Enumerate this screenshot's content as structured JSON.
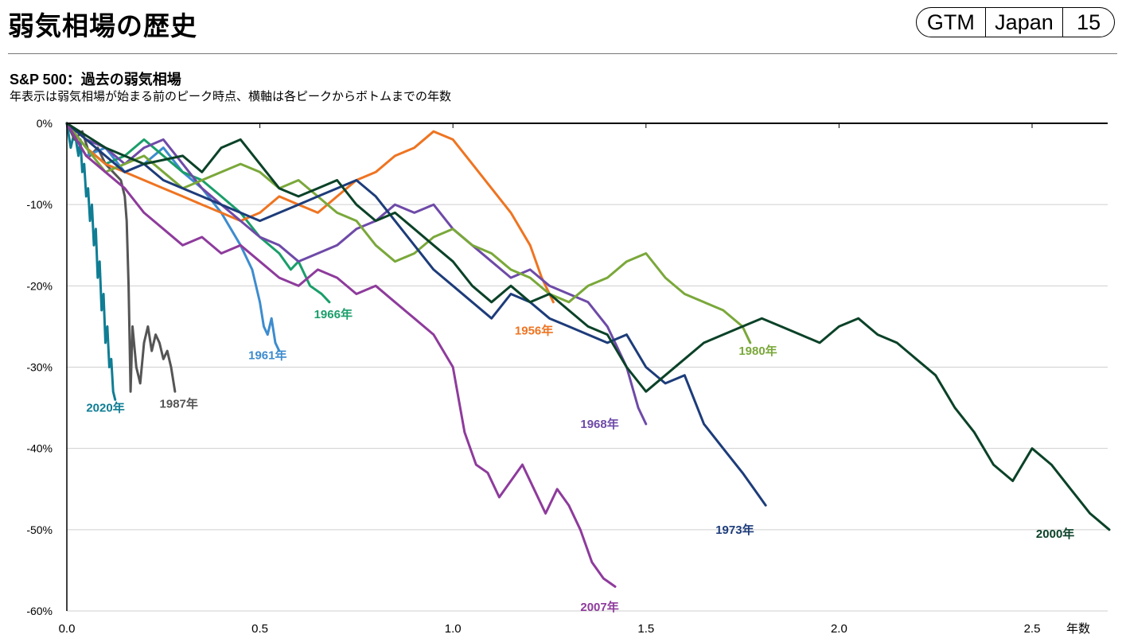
{
  "header": {
    "title": "弱気相場の歴史",
    "badge": [
      "GTM",
      "Japan",
      "15"
    ]
  },
  "subtitle": "S&P 500：過去の弱気相場",
  "caption": "年表示は弱気相場が始まる前のピーク時点、横軸は各ピークからボトムまでの年数",
  "chart_data": {
    "type": "line",
    "title": "S&P 500：過去の弱気相場",
    "xlabel": "年数",
    "ylabel": "",
    "xlim": [
      0,
      2.7
    ],
    "ylim": [
      -60,
      0
    ],
    "x_ticks": [
      "0.0",
      "0.5",
      "1.0",
      "1.5",
      "2.0",
      "2.5"
    ],
    "y_ticks": [
      "0%",
      "-10%",
      "-20%",
      "-30%",
      "-40%",
      "-50%",
      "-60%"
    ],
    "grid": true,
    "series": [
      {
        "name": "2020年",
        "color": "#0f7d94",
        "label_at": [
          0.1,
          -35.5
        ],
        "points": [
          [
            0,
            0
          ],
          [
            0.01,
            -3
          ],
          [
            0.02,
            -1
          ],
          [
            0.03,
            -4
          ],
          [
            0.035,
            -2
          ],
          [
            0.04,
            -6
          ],
          [
            0.045,
            -5
          ],
          [
            0.05,
            -9
          ],
          [
            0.055,
            -8
          ],
          [
            0.06,
            -12
          ],
          [
            0.065,
            -10
          ],
          [
            0.07,
            -15
          ],
          [
            0.075,
            -13
          ],
          [
            0.08,
            -19
          ],
          [
            0.085,
            -17
          ],
          [
            0.09,
            -23
          ],
          [
            0.095,
            -21
          ],
          [
            0.1,
            -27
          ],
          [
            0.105,
            -25
          ],
          [
            0.11,
            -30
          ],
          [
            0.115,
            -29
          ],
          [
            0.12,
            -33
          ],
          [
            0.125,
            -34
          ]
        ]
      },
      {
        "name": "1987年",
        "color": "#555555",
        "label_at": [
          0.29,
          -35
        ],
        "points": [
          [
            0,
            0
          ],
          [
            0.02,
            -2
          ],
          [
            0.04,
            -1
          ],
          [
            0.06,
            -4
          ],
          [
            0.08,
            -3
          ],
          [
            0.1,
            -5
          ],
          [
            0.12,
            -6
          ],
          [
            0.14,
            -7
          ],
          [
            0.15,
            -9
          ],
          [
            0.155,
            -12
          ],
          [
            0.16,
            -20
          ],
          [
            0.165,
            -33
          ],
          [
            0.17,
            -25
          ],
          [
            0.18,
            -30
          ],
          [
            0.19,
            -32
          ],
          [
            0.2,
            -27
          ],
          [
            0.21,
            -25
          ],
          [
            0.22,
            -28
          ],
          [
            0.23,
            -26
          ],
          [
            0.24,
            -27
          ],
          [
            0.25,
            -29
          ],
          [
            0.26,
            -28
          ],
          [
            0.27,
            -30
          ],
          [
            0.28,
            -33
          ]
        ]
      },
      {
        "name": "1961年",
        "color": "#3d8ccf",
        "label_at": [
          0.52,
          -29
        ],
        "points": [
          [
            0,
            0
          ],
          [
            0.05,
            -4
          ],
          [
            0.1,
            -3
          ],
          [
            0.15,
            -6
          ],
          [
            0.2,
            -5
          ],
          [
            0.25,
            -3
          ],
          [
            0.3,
            -6
          ],
          [
            0.35,
            -8
          ],
          [
            0.4,
            -11
          ],
          [
            0.45,
            -15
          ],
          [
            0.48,
            -18
          ],
          [
            0.5,
            -22
          ],
          [
            0.51,
            -25
          ],
          [
            0.52,
            -26
          ],
          [
            0.53,
            -24
          ],
          [
            0.54,
            -27
          ],
          [
            0.55,
            -28
          ]
        ]
      },
      {
        "name": "1966年",
        "color": "#1a9e6a",
        "label_at": [
          0.69,
          -24
        ],
        "points": [
          [
            0,
            0
          ],
          [
            0.05,
            -3
          ],
          [
            0.1,
            -5
          ],
          [
            0.15,
            -4
          ],
          [
            0.2,
            -2
          ],
          [
            0.25,
            -4
          ],
          [
            0.3,
            -6
          ],
          [
            0.35,
            -7
          ],
          [
            0.4,
            -9
          ],
          [
            0.45,
            -11
          ],
          [
            0.5,
            -14
          ],
          [
            0.55,
            -16
          ],
          [
            0.58,
            -18
          ],
          [
            0.6,
            -17
          ],
          [
            0.63,
            -20
          ],
          [
            0.66,
            -21
          ],
          [
            0.68,
            -22
          ]
        ]
      },
      {
        "name": "1956年",
        "color": "#ef7421",
        "label_at": [
          1.21,
          -26
        ],
        "points": [
          [
            0,
            0
          ],
          [
            0.05,
            -3
          ],
          [
            0.1,
            -5
          ],
          [
            0.15,
            -6
          ],
          [
            0.2,
            -7
          ],
          [
            0.25,
            -8
          ],
          [
            0.3,
            -9
          ],
          [
            0.35,
            -10
          ],
          [
            0.4,
            -11
          ],
          [
            0.45,
            -12
          ],
          [
            0.5,
            -11
          ],
          [
            0.55,
            -9
          ],
          [
            0.6,
            -10
          ],
          [
            0.65,
            -11
          ],
          [
            0.7,
            -9
          ],
          [
            0.75,
            -7
          ],
          [
            0.8,
            -6
          ],
          [
            0.85,
            -4
          ],
          [
            0.9,
            -3
          ],
          [
            0.95,
            -1
          ],
          [
            1.0,
            -2
          ],
          [
            1.05,
            -5
          ],
          [
            1.1,
            -8
          ],
          [
            1.15,
            -11
          ],
          [
            1.2,
            -15
          ],
          [
            1.23,
            -19
          ],
          [
            1.26,
            -22
          ]
        ]
      },
      {
        "name": "1968年",
        "color": "#6e4aa8",
        "label_at": [
          1.38,
          -37.5
        ],
        "points": [
          [
            0,
            0
          ],
          [
            0.05,
            -2
          ],
          [
            0.1,
            -3
          ],
          [
            0.15,
            -5
          ],
          [
            0.2,
            -3
          ],
          [
            0.25,
            -2
          ],
          [
            0.3,
            -5
          ],
          [
            0.35,
            -8
          ],
          [
            0.4,
            -10
          ],
          [
            0.45,
            -12
          ],
          [
            0.5,
            -14
          ],
          [
            0.55,
            -15
          ],
          [
            0.6,
            -17
          ],
          [
            0.65,
            -16
          ],
          [
            0.7,
            -15
          ],
          [
            0.75,
            -13
          ],
          [
            0.8,
            -12
          ],
          [
            0.85,
            -10
          ],
          [
            0.9,
            -11
          ],
          [
            0.95,
            -10
          ],
          [
            1.0,
            -13
          ],
          [
            1.05,
            -15
          ],
          [
            1.1,
            -17
          ],
          [
            1.15,
            -19
          ],
          [
            1.2,
            -18
          ],
          [
            1.25,
            -20
          ],
          [
            1.3,
            -21
          ],
          [
            1.35,
            -22
          ],
          [
            1.4,
            -25
          ],
          [
            1.45,
            -30
          ],
          [
            1.48,
            -35
          ],
          [
            1.5,
            -37
          ]
        ]
      },
      {
        "name": "1980年",
        "color": "#7aa83a",
        "label_at": [
          1.79,
          -28.5
        ],
        "points": [
          [
            0,
            0
          ],
          [
            0.05,
            -3
          ],
          [
            0.1,
            -6
          ],
          [
            0.15,
            -5
          ],
          [
            0.2,
            -4
          ],
          [
            0.25,
            -6
          ],
          [
            0.3,
            -8
          ],
          [
            0.35,
            -7
          ],
          [
            0.4,
            -6
          ],
          [
            0.45,
            -5
          ],
          [
            0.5,
            -6
          ],
          [
            0.55,
            -8
          ],
          [
            0.6,
            -7
          ],
          [
            0.65,
            -9
          ],
          [
            0.7,
            -11
          ],
          [
            0.75,
            -12
          ],
          [
            0.8,
            -15
          ],
          [
            0.85,
            -17
          ],
          [
            0.9,
            -16
          ],
          [
            0.95,
            -14
          ],
          [
            1.0,
            -13
          ],
          [
            1.05,
            -15
          ],
          [
            1.1,
            -16
          ],
          [
            1.15,
            -18
          ],
          [
            1.2,
            -19
          ],
          [
            1.25,
            -21
          ],
          [
            1.3,
            -22
          ],
          [
            1.35,
            -20
          ],
          [
            1.4,
            -19
          ],
          [
            1.45,
            -17
          ],
          [
            1.5,
            -16
          ],
          [
            1.55,
            -19
          ],
          [
            1.6,
            -21
          ],
          [
            1.65,
            -22
          ],
          [
            1.7,
            -23
          ],
          [
            1.75,
            -25
          ],
          [
            1.77,
            -27
          ]
        ]
      },
      {
        "name": "1973年",
        "color": "#1d3c7a",
        "label_at": [
          1.73,
          -50.5
        ],
        "points": [
          [
            0,
            0
          ],
          [
            0.05,
            -2
          ],
          [
            0.1,
            -4
          ],
          [
            0.15,
            -6
          ],
          [
            0.2,
            -5
          ],
          [
            0.25,
            -7
          ],
          [
            0.3,
            -8
          ],
          [
            0.35,
            -9
          ],
          [
            0.4,
            -10
          ],
          [
            0.45,
            -11
          ],
          [
            0.5,
            -12
          ],
          [
            0.55,
            -11
          ],
          [
            0.6,
            -10
          ],
          [
            0.65,
            -9
          ],
          [
            0.7,
            -8
          ],
          [
            0.75,
            -7
          ],
          [
            0.8,
            -9
          ],
          [
            0.85,
            -12
          ],
          [
            0.9,
            -15
          ],
          [
            0.95,
            -18
          ],
          [
            1.0,
            -20
          ],
          [
            1.05,
            -22
          ],
          [
            1.1,
            -24
          ],
          [
            1.15,
            -21
          ],
          [
            1.2,
            -22
          ],
          [
            1.25,
            -24
          ],
          [
            1.3,
            -25
          ],
          [
            1.35,
            -26
          ],
          [
            1.4,
            -27
          ],
          [
            1.45,
            -26
          ],
          [
            1.5,
            -30
          ],
          [
            1.55,
            -32
          ],
          [
            1.6,
            -31
          ],
          [
            1.65,
            -37
          ],
          [
            1.7,
            -40
          ],
          [
            1.75,
            -43
          ],
          [
            1.78,
            -45
          ],
          [
            1.81,
            -47
          ]
        ]
      },
      {
        "name": "2007年",
        "color": "#8e3b9c",
        "label_at": [
          1.38,
          -60
        ],
        "points": [
          [
            0,
            0
          ],
          [
            0.05,
            -4
          ],
          [
            0.1,
            -6
          ],
          [
            0.15,
            -8
          ],
          [
            0.2,
            -11
          ],
          [
            0.25,
            -13
          ],
          [
            0.3,
            -15
          ],
          [
            0.35,
            -14
          ],
          [
            0.4,
            -16
          ],
          [
            0.45,
            -15
          ],
          [
            0.5,
            -17
          ],
          [
            0.55,
            -19
          ],
          [
            0.6,
            -20
          ],
          [
            0.65,
            -18
          ],
          [
            0.7,
            -19
          ],
          [
            0.75,
            -21
          ],
          [
            0.8,
            -20
          ],
          [
            0.85,
            -22
          ],
          [
            0.9,
            -24
          ],
          [
            0.95,
            -26
          ],
          [
            1.0,
            -30
          ],
          [
            1.03,
            -38
          ],
          [
            1.06,
            -42
          ],
          [
            1.09,
            -43
          ],
          [
            1.12,
            -46
          ],
          [
            1.15,
            -44
          ],
          [
            1.18,
            -42
          ],
          [
            1.21,
            -45
          ],
          [
            1.24,
            -48
          ],
          [
            1.27,
            -45
          ],
          [
            1.3,
            -47
          ],
          [
            1.33,
            -50
          ],
          [
            1.36,
            -54
          ],
          [
            1.39,
            -56
          ],
          [
            1.42,
            -57
          ]
        ]
      },
      {
        "name": "2000年",
        "color": "#0b4228",
        "label_at": [
          2.56,
          -51
        ],
        "points": [
          [
            0,
            0
          ],
          [
            0.1,
            -3
          ],
          [
            0.2,
            -5
          ],
          [
            0.3,
            -4
          ],
          [
            0.35,
            -6
          ],
          [
            0.4,
            -3
          ],
          [
            0.45,
            -2
          ],
          [
            0.5,
            -5
          ],
          [
            0.55,
            -8
          ],
          [
            0.6,
            -9
          ],
          [
            0.65,
            -8
          ],
          [
            0.7,
            -7
          ],
          [
            0.75,
            -10
          ],
          [
            0.8,
            -12
          ],
          [
            0.85,
            -11
          ],
          [
            0.9,
            -13
          ],
          [
            0.95,
            -15
          ],
          [
            1.0,
            -17
          ],
          [
            1.05,
            -20
          ],
          [
            1.1,
            -22
          ],
          [
            1.15,
            -20
          ],
          [
            1.2,
            -22
          ],
          [
            1.25,
            -21
          ],
          [
            1.3,
            -23
          ],
          [
            1.35,
            -25
          ],
          [
            1.4,
            -26
          ],
          [
            1.45,
            -30
          ],
          [
            1.5,
            -33
          ],
          [
            1.55,
            -31
          ],
          [
            1.6,
            -29
          ],
          [
            1.65,
            -27
          ],
          [
            1.7,
            -26
          ],
          [
            1.75,
            -25
          ],
          [
            1.8,
            -24
          ],
          [
            1.85,
            -25
          ],
          [
            1.9,
            -26
          ],
          [
            1.95,
            -27
          ],
          [
            2.0,
            -25
          ],
          [
            2.05,
            -24
          ],
          [
            2.1,
            -26
          ],
          [
            2.15,
            -27
          ],
          [
            2.2,
            -29
          ],
          [
            2.25,
            -31
          ],
          [
            2.3,
            -35
          ],
          [
            2.35,
            -38
          ],
          [
            2.4,
            -42
          ],
          [
            2.45,
            -44
          ],
          [
            2.5,
            -40
          ],
          [
            2.55,
            -42
          ],
          [
            2.6,
            -45
          ],
          [
            2.65,
            -48
          ],
          [
            2.7,
            -50
          ]
        ]
      }
    ]
  }
}
